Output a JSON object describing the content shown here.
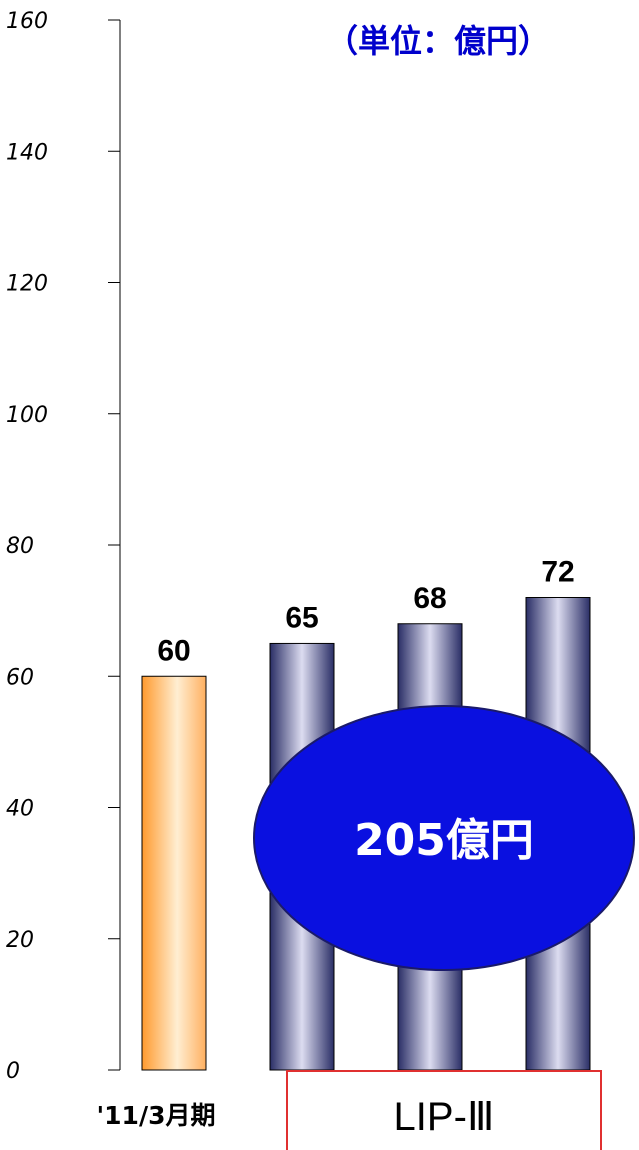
{
  "unit_label": "（単位：億円）",
  "total_label": "205億円",
  "group_label": "LIP-Ⅲ",
  "colors": {
    "orange": "#ff9a2e",
    "navy": "#2a2e66",
    "ellipse": "#0a10e0",
    "group_box": "#e03030"
  },
  "chart_data": {
    "type": "bar",
    "categories": [
      "'11/3月期",
      "",
      "",
      ""
    ],
    "values": [
      60,
      65,
      68,
      72
    ],
    "ylim": [
      0,
      160
    ],
    "yticks": [
      0,
      20,
      40,
      60,
      80,
      100,
      120,
      140,
      160
    ],
    "data_labels": [
      "60",
      "65",
      "68",
      "72"
    ],
    "bar_styles": [
      "orange",
      "navy",
      "navy",
      "navy"
    ],
    "grid": false,
    "legend": "none"
  }
}
